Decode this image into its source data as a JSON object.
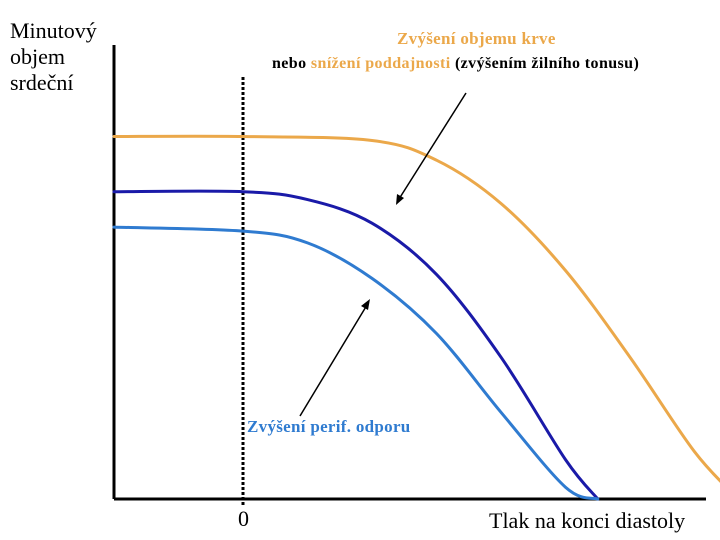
{
  "colors": {
    "orange": "#EBA84A",
    "dark_blue": "#1A1AA8",
    "blue": "#2F7BD0",
    "axis": "#000000"
  },
  "labels": {
    "y_line1": "Minutový",
    "y_line2": "objem",
    "y_line3": "srdeční",
    "x": "Tlak na konci diastoly",
    "zero": "0"
  },
  "annotations": {
    "top_line1": "Zvýšení objemu krve",
    "top_line2_a": "nebo ",
    "top_line2_b": "snížení poddajnosti",
    "top_line2_c": " (zvýšením žilního tonusu)",
    "bottom": "Zvýšení perif. odporu"
  },
  "chart_data": {
    "type": "line",
    "xlabel": "Tlak na konci diastoly",
    "ylabel": "Minutový objem srdeční",
    "x_tick_labels": [
      "0"
    ],
    "grid": false,
    "legend": "none",
    "series": [
      {
        "color": "#EBA84A",
        "points": [
          [
            -1.0,
            0.92
          ],
          [
            0.0,
            0.92
          ],
          [
            1.0,
            0.91
          ],
          [
            1.5,
            0.86
          ],
          [
            2.0,
            0.75
          ],
          [
            2.5,
            0.58
          ],
          [
            3.0,
            0.36
          ],
          [
            3.5,
            0.12
          ],
          [
            3.84,
            0.0
          ]
        ]
      },
      {
        "color": "#1A1AA8",
        "points": [
          [
            -1.0,
            0.78
          ],
          [
            0.0,
            0.78
          ],
          [
            0.5,
            0.76
          ],
          [
            1.0,
            0.7
          ],
          [
            1.5,
            0.57
          ],
          [
            2.0,
            0.36
          ],
          [
            2.5,
            0.1
          ],
          [
            2.75,
            0.0
          ]
        ]
      },
      {
        "color": "#2F7BD0",
        "points": [
          [
            -1.0,
            0.69
          ],
          [
            0.0,
            0.68
          ],
          [
            0.5,
            0.65
          ],
          [
            1.0,
            0.56
          ],
          [
            1.5,
            0.42
          ],
          [
            2.0,
            0.22
          ],
          [
            2.5,
            0.03
          ],
          [
            2.75,
            0.0
          ]
        ]
      }
    ]
  }
}
